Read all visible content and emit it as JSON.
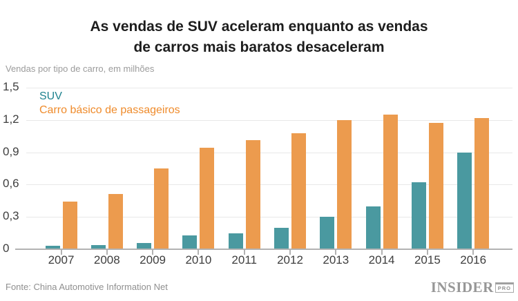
{
  "chart_data": {
    "type": "bar",
    "title": "As vendas de SUV aceleram enquanto as vendas de carros mais baratos desaceleram",
    "title_lines": [
      "As vendas de SUV aceleram enquanto as vendas",
      "de carros mais baratos desaceleram"
    ],
    "units_note": "Vendas por tipo de carro, em milhões",
    "categories": [
      "2007",
      "2008",
      "2009",
      "2010",
      "2011",
      "2012",
      "2013",
      "2014",
      "2015",
      "2016"
    ],
    "series": [
      {
        "name": "SUV",
        "color": "#4A99A0",
        "label_color": "#1E828E",
        "values": [
          0.03,
          0.04,
          0.06,
          0.13,
          0.15,
          0.2,
          0.3,
          0.4,
          0.62,
          0.9
        ]
      },
      {
        "name": "Carro básico de passageiros",
        "color": "#EC9B4E",
        "label_color": "#EF8B2B",
        "values": [
          0.44,
          0.51,
          0.75,
          0.94,
          1.01,
          1.08,
          1.2,
          1.25,
          1.17,
          1.22
        ]
      }
    ],
    "ylim": [
      0,
      1.5
    ],
    "yticks": [
      {
        "value": 0,
        "label": "0"
      },
      {
        "value": 0.3,
        "label": "0,3"
      },
      {
        "value": 0.6,
        "label": "0,6"
      },
      {
        "value": 0.9,
        "label": "0,9"
      },
      {
        "value": 1.2,
        "label": "1,2"
      },
      {
        "value": 1.5,
        "label": "1,5"
      }
    ],
    "grid": "horizontal",
    "legend_position": "top-left-inside"
  },
  "footer": {
    "source": "Fonte: China Automotive Information Net",
    "logo_main": "INSIDER",
    "logo_sub": "PRO"
  }
}
